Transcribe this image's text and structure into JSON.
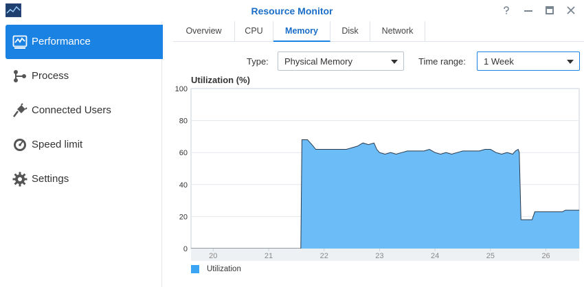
{
  "window": {
    "title": "Resource Monitor",
    "controls": [
      "help",
      "minimize",
      "maximize",
      "close"
    ]
  },
  "sidebar": {
    "items": [
      {
        "label": "Performance",
        "icon": "performance-icon",
        "active": true
      },
      {
        "label": "Process",
        "icon": "process-icon",
        "active": false
      },
      {
        "label": "Connected Users",
        "icon": "plug-icon",
        "active": false
      },
      {
        "label": "Speed limit",
        "icon": "speed-icon",
        "active": false
      },
      {
        "label": "Settings",
        "icon": "gear-icon",
        "active": false
      }
    ]
  },
  "tabs": [
    {
      "label": "Overview",
      "active": false
    },
    {
      "label": "CPU",
      "active": false
    },
    {
      "label": "Memory",
      "active": true
    },
    {
      "label": "Disk",
      "active": false
    },
    {
      "label": "Network",
      "active": false
    }
  ],
  "filters": {
    "type_label": "Type:",
    "type_value": "Physical Memory",
    "range_label": "Time range:",
    "range_value": "1 Week"
  },
  "colors": {
    "accent": "#1a82e2",
    "area_fill": "#6cbcf7",
    "area_stroke": "#2a3b4c",
    "legend": "#3aa5f3"
  },
  "chart_data": {
    "type": "area",
    "title": "Utilization (%)",
    "xlabel": "",
    "ylabel": "",
    "ylim": [
      0,
      100
    ],
    "xlim": [
      19.6,
      26.6
    ],
    "y_ticks": [
      0,
      20,
      40,
      60,
      80,
      100
    ],
    "x_ticks": [
      20,
      21,
      22,
      23,
      24,
      25,
      26
    ],
    "grid": true,
    "legend_position": "bottom-left",
    "series": [
      {
        "name": "Utilization",
        "x": [
          19.6,
          21.58,
          21.6,
          21.7,
          21.78,
          21.85,
          22.0,
          22.2,
          22.4,
          22.5,
          22.6,
          22.7,
          22.8,
          22.9,
          22.95,
          23.0,
          23.1,
          23.2,
          23.3,
          23.4,
          23.5,
          23.6,
          23.7,
          23.8,
          23.9,
          24.0,
          24.1,
          24.2,
          24.3,
          24.4,
          24.5,
          24.6,
          24.7,
          24.8,
          24.9,
          25.0,
          25.1,
          25.2,
          25.3,
          25.4,
          25.45,
          25.5,
          25.52,
          25.55,
          25.6,
          25.75,
          25.8,
          25.85,
          25.9,
          26.0,
          26.2,
          26.3,
          26.35,
          26.5,
          26.6
        ],
        "y": [
          0,
          0,
          68,
          68,
          65,
          62,
          62,
          62,
          62,
          63,
          64,
          66,
          65,
          66,
          62,
          60,
          59,
          60,
          59,
          60,
          61,
          61,
          61,
          61,
          62,
          60,
          59,
          60,
          59,
          60,
          61,
          61,
          61,
          61,
          62,
          62,
          60,
          59,
          60,
          59,
          61,
          62,
          60,
          18,
          18,
          18,
          23,
          23,
          23,
          23,
          23,
          23,
          24,
          24,
          24
        ]
      }
    ]
  },
  "legend": {
    "label": "Utilization"
  }
}
